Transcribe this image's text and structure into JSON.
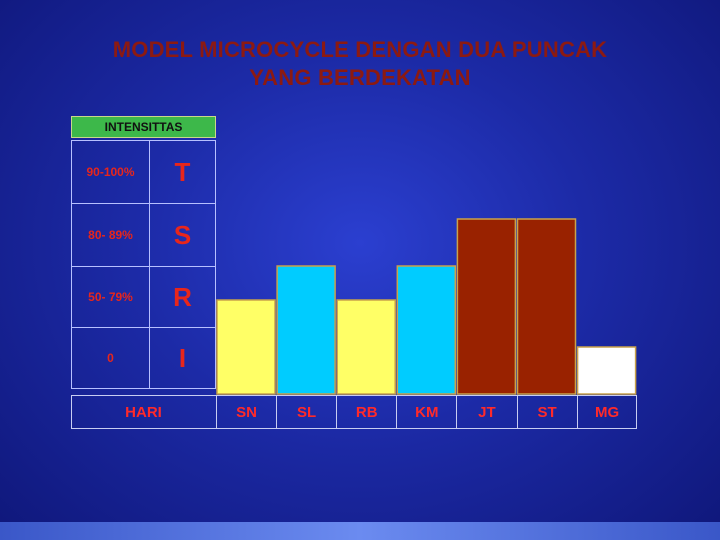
{
  "title": {
    "line1": "MODEL MICROCYCLE DENGAN DUA PUNCAK",
    "line2": "YANG BERDEKATAN"
  },
  "colors": {
    "title": "#8c1a12",
    "labels": "#e8261b",
    "header": "#3db84a",
    "yellow": "#ffff66",
    "cyan": "#00ccff",
    "darkred": "#992200",
    "white": "#ffffff"
  },
  "chart_data": {
    "type": "bar",
    "title": "MODEL MICROCYCLE DENGAN DUA PUNCAK YANG BERDEKATAN",
    "ylabel": "INTENSITTAS",
    "xlabel": "HARI",
    "y_levels": [
      {
        "range": "90-100%",
        "letter": "T"
      },
      {
        "range": "80- 89%",
        "letter": "S"
      },
      {
        "range": "50- 79%",
        "letter": "R"
      },
      {
        "range": "0",
        "letter": "I"
      }
    ],
    "categories": [
      "SN",
      "SL",
      "RB",
      "KM",
      "JT",
      "ST",
      "MG"
    ],
    "values": [
      "R",
      "S",
      "R",
      "S",
      "T",
      "T",
      "I"
    ],
    "bar_colors": [
      "#ffff66",
      "#00ccff",
      "#ffff66",
      "#00ccff",
      "#992200",
      "#992200",
      "#ffffff"
    ]
  }
}
